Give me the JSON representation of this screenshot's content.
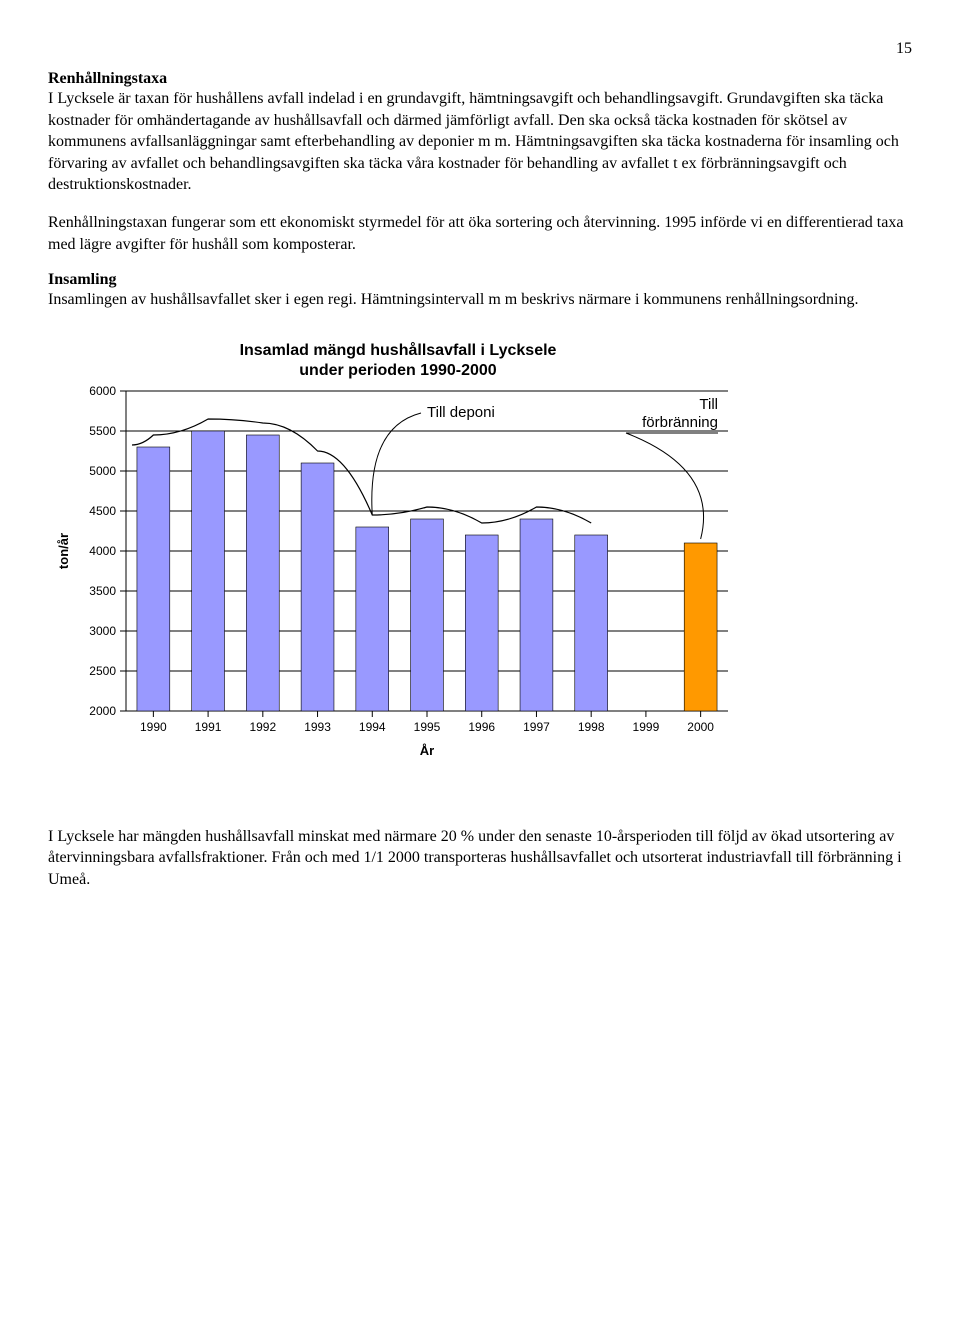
{
  "pagenum": "15",
  "heading1": "Renhållningstaxa",
  "para1": "I Lycksele är taxan för hushållens avfall indelad i en grundavgift, hämtningsavgift och behandlingsavgift. Grundavgiften ska täcka kostnader för omhändertagande av hushållsavfall och därmed jämförligt avfall. Den ska också täcka kostnaden för skötsel av kommunens avfallsanläggningar samt efterbehandling av deponier m m. Hämtningsavgiften ska täcka kostnaderna för insamling och förvaring av avfallet och behandlingsavgiften ska täcka våra kostnader för behandling av avfallet t ex förbränningsavgift och destruktionskostnader.",
  "para2": "Renhållningstaxan fungerar som ett ekonomiskt styrmedel för att öka sortering och återvinning. 1995 införde vi en differentierad taxa med lägre avgifter för hushåll som komposterar.",
  "heading2": "Insamling",
  "para3": "Insamlingen av hushållsavfallet sker i egen regi. Hämtningsintervall m m beskrivs närmare i kommunens renhållningsordning.",
  "para4": "I Lycksele har mängden hushållsavfall minskat med närmare 20 % under den senaste 10-årsperioden till följd av ökad utsortering av återvinningsbara avfallsfraktioner. Från och med 1/1 2000 transporteras hushållsavfallet och utsorterat industriavfall till förbränning i Umeå.",
  "chart": {
    "type": "bar",
    "title_line1": "Insamlad mängd hushållsavfall i Lycksele",
    "title_line2": "under perioden 1990-2000",
    "title_fontsize": 16,
    "title_weight": "bold",
    "xlabel": "År",
    "ylabel": "ton/år",
    "label_fontsize": 13,
    "label_weight": "bold",
    "xlim": [
      1990,
      2000
    ],
    "ylim": [
      2000,
      6000
    ],
    "ytick_step": 500,
    "categories": [
      "1990",
      "1991",
      "1992",
      "1993",
      "1994",
      "1995",
      "1996",
      "1997",
      "1998",
      "1999",
      "2000"
    ],
    "values": [
      5300,
      5500,
      5450,
      5100,
      4300,
      4400,
      4200,
      4400,
      4200,
      0,
      4100
    ],
    "bar_colors": [
      "#9999ff",
      "#9999ff",
      "#9999ff",
      "#9999ff",
      "#9999ff",
      "#9999ff",
      "#9999ff",
      "#9999ff",
      "#9999ff",
      "#9999ff",
      "#ff9900"
    ],
    "missing_index": 9,
    "bar_width": 0.6,
    "background_color": "#ffffff",
    "grid_color": "#000000",
    "tick_fontsize": 12,
    "callout1": "Till deponi",
    "callout2": "Till\nförbränning",
    "callout_fontsize": 15
  }
}
